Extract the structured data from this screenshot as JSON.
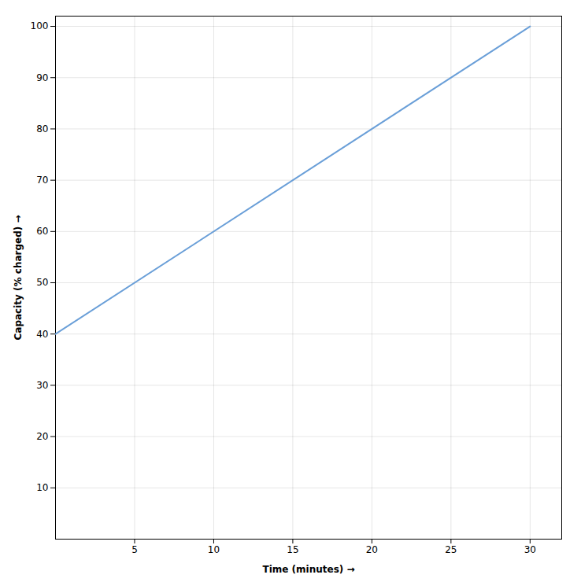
{
  "chart_data": {
    "type": "line",
    "xlabel": "Time (minutes)",
    "ylabel": "Capacity (% charged)",
    "x": [
      0,
      30
    ],
    "values": [
      40,
      100
    ],
    "color": "#6a9fd8",
    "xlim": [
      0,
      32
    ],
    "ylim": [
      0,
      102
    ],
    "xticks": [
      5,
      10,
      15,
      20,
      25,
      30
    ],
    "yticks": [
      10,
      20,
      30,
      40,
      50,
      60,
      70,
      80,
      90,
      100
    ],
    "grid": true
  }
}
